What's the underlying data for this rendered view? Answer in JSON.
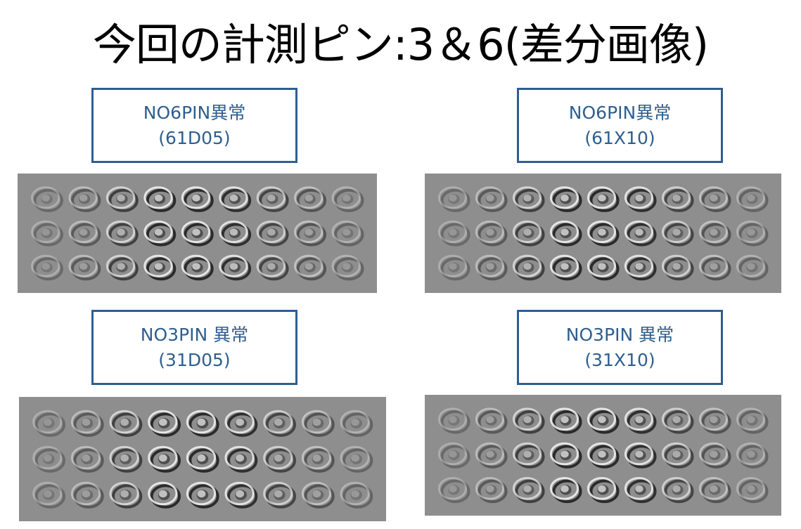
{
  "slide": {
    "title": "今回の計測ピン:3＆6(差分画像)"
  },
  "panels": [
    {
      "line1": "NO6PIN異常",
      "line2": "(61D05)",
      "image": "difference-image-61d05"
    },
    {
      "line1": "NO6PIN異常",
      "line2": "(61X10)",
      "image": "difference-image-61x10"
    },
    {
      "line1": "NO3PIN 異常",
      "line2": "(31D05)",
      "image": "difference-image-31d05"
    },
    {
      "line1": "NO3PIN 異常",
      "line2": "(31X10)",
      "image": "difference-image-31x10"
    }
  ],
  "colors": {
    "box_border": "#2e5f8f",
    "box_text": "#2e5f8f",
    "image_background": "#8e8e8e"
  }
}
